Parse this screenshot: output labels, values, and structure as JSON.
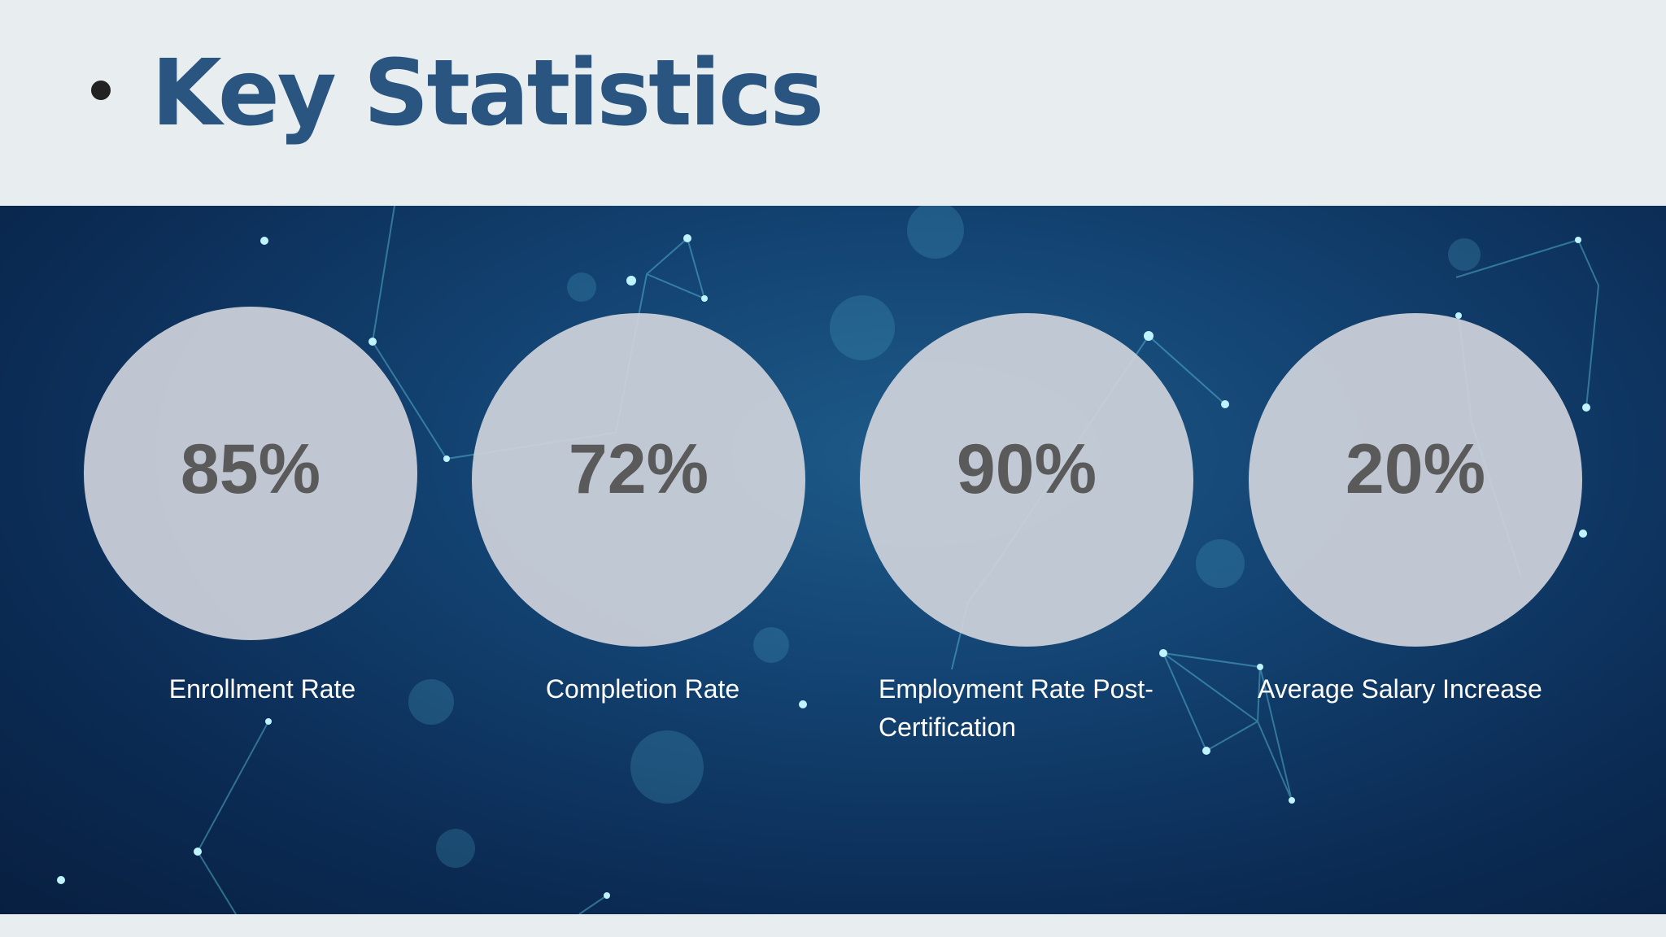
{
  "header": {
    "title": "Key Statistics"
  },
  "stats": [
    {
      "value": "85%",
      "label": "Enrollment Rate"
    },
    {
      "value": "72%",
      "label": "Completion Rate"
    },
    {
      "value": "90%",
      "label": "Employment Rate Post-Certification"
    },
    {
      "value": "20%",
      "label": "Average Salary Increase"
    }
  ]
}
